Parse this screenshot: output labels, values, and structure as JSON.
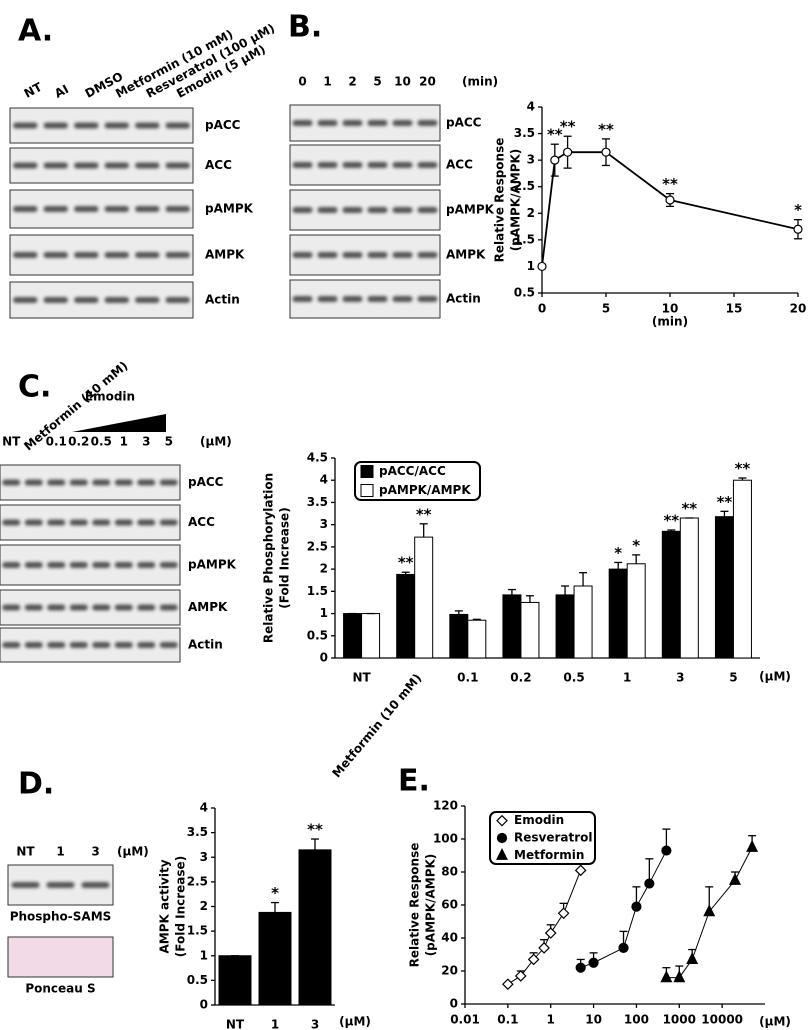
{
  "panel_labels": [
    "A.",
    "B.",
    "C.",
    "D.",
    "E."
  ],
  "blots": [
    {
      "lanes": [
        "NT",
        "AI",
        "DMSO",
        "Metformin (10 mM)",
        "Resveratrol (100 μM)",
        "Emodin (5 μM)"
      ],
      "rows": [
        "pACC",
        "ACC",
        "pAMPK",
        "AMPK",
        "Actin"
      ]
    },
    {
      "lanes": [
        "0",
        "1",
        "2",
        "5",
        "10",
        "20"
      ],
      "unit": "(min)",
      "rows": [
        "pACC",
        "ACC",
        "pAMPK",
        "AMPK",
        "Actin"
      ]
    },
    {
      "lanes": [
        "NT",
        "Metformin (10 mM)",
        "0.1",
        "0.2",
        "0.5",
        "1",
        "3",
        "5"
      ],
      "treatment": "Emodin",
      "unit": "(μM)",
      "rows": [
        "pACC",
        "ACC",
        "pAMPK",
        "AMPK",
        "Actin"
      ]
    },
    {
      "lanes": [
        "NT",
        "1",
        "3"
      ],
      "unit": "(μM)",
      "rows": [
        "Phospho-SAMS",
        "Ponceau S"
      ]
    }
  ],
  "chart_data": [
    {
      "type": "line",
      "x": [
        0,
        1,
        2,
        5,
        10,
        20
      ],
      "values": [
        1,
        3,
        3.15,
        3.15,
        2.25,
        1.7
      ],
      "errors": [
        0,
        0.3,
        0.3,
        0.25,
        0.12,
        0.18
      ],
      "significance": [
        null,
        "**",
        "**",
        "**",
        "**",
        "*"
      ],
      "color": "#000000",
      "xlim": [
        0,
        20
      ],
      "xticks": [
        0,
        5,
        10,
        15,
        20
      ],
      "ylim": [
        0.5,
        4
      ],
      "yticks": [
        0.5,
        1,
        1.5,
        2,
        2.5,
        3,
        3.5,
        4
      ],
      "xlabel": "(min)",
      "ylabel": [
        "Relative Response",
        "(pAMPK/AMPK)"
      ]
    },
    {
      "type": "bar",
      "categories": [
        "NT",
        "Metformin (10 mM)",
        "0.1",
        "0.2",
        "0.5",
        "1",
        "3",
        "5"
      ],
      "series": [
        {
          "name": "pACC/ACC",
          "color": "#000000",
          "values": [
            1,
            1.88,
            0.98,
            1.42,
            1.42,
            2,
            2.85,
            3.18
          ],
          "errors": [
            0,
            0.05,
            0.08,
            0.12,
            0.2,
            0.15,
            0.03,
            0.12
          ],
          "significance": [
            null,
            "**",
            null,
            null,
            null,
            "*",
            "**",
            "**"
          ]
        },
        {
          "name": "pAMPK/AMPK",
          "color": "#ffffff",
          "values": [
            1,
            2.72,
            0.85,
            1.25,
            1.62,
            2.12,
            3.15,
            4
          ],
          "errors": [
            0,
            0.3,
            0.02,
            0.15,
            0.3,
            0.2,
            0,
            0.05
          ],
          "significance": [
            null,
            "**",
            null,
            null,
            null,
            "*",
            "**",
            "**"
          ]
        }
      ],
      "ylim": [
        0,
        4.5
      ],
      "yticks": [
        0,
        0.5,
        1,
        1.5,
        2,
        2.5,
        3,
        3.5,
        4,
        4.5
      ],
      "xlabel": "(μM)",
      "ylabel": [
        "Relative Phosphorylation",
        "(Fold Increase)"
      ],
      "legend": "top-left"
    },
    {
      "type": "bar",
      "categories": [
        "NT",
        "1",
        "3"
      ],
      "values": [
        1,
        1.88,
        3.15
      ],
      "errors": [
        0,
        0.2,
        0.22
      ],
      "significance": [
        null,
        "*",
        "**"
      ],
      "color": "#000000",
      "ylim": [
        0,
        4
      ],
      "yticks": [
        0,
        0.5,
        1,
        1.5,
        2,
        2.5,
        3,
        3.5,
        4
      ],
      "xlabel": "(μM)",
      "ylabel": [
        "AMPK activity",
        "(Fold Increase)"
      ]
    },
    {
      "type": "scatter",
      "log_x": true,
      "series": [
        {
          "name": "Emodin",
          "color": "#ffffff",
          "marker": "diamond",
          "x": [
            0.1,
            0.2,
            0.4,
            0.7,
            1,
            2,
            5
          ],
          "values": [
            12,
            17,
            27,
            34,
            43,
            55,
            81
          ],
          "errors": [
            0,
            3,
            4,
            5,
            5,
            6,
            6
          ]
        },
        {
          "name": "Resveratrol",
          "color": "#000000",
          "marker": "circle",
          "x": [
            5,
            10,
            50,
            100,
            200,
            500
          ],
          "values": [
            22,
            25,
            34,
            59,
            73,
            93
          ],
          "errors": [
            5,
            6,
            10,
            12,
            15,
            13
          ]
        },
        {
          "name": "Metformin",
          "color": "#000000",
          "marker": "triangle",
          "x": [
            500,
            1000,
            2000,
            5000,
            20000,
            50000
          ],
          "values": [
            16,
            16,
            27,
            56,
            75,
            95
          ],
          "errors": [
            6,
            7,
            6,
            15,
            5,
            7
          ]
        }
      ],
      "xlim": [
        0.01,
        100000
      ],
      "xticks": [
        0.01,
        0.1,
        1,
        10,
        100,
        1000,
        10000
      ],
      "ylim": [
        0,
        120
      ],
      "yticks": [
        0,
        20,
        40,
        60,
        80,
        100,
        120
      ],
      "xlabel": "(μM)",
      "ylabel": [
        "Relative Response",
        "(pAMPK/AMPK)"
      ],
      "legend": "top-left"
    }
  ]
}
